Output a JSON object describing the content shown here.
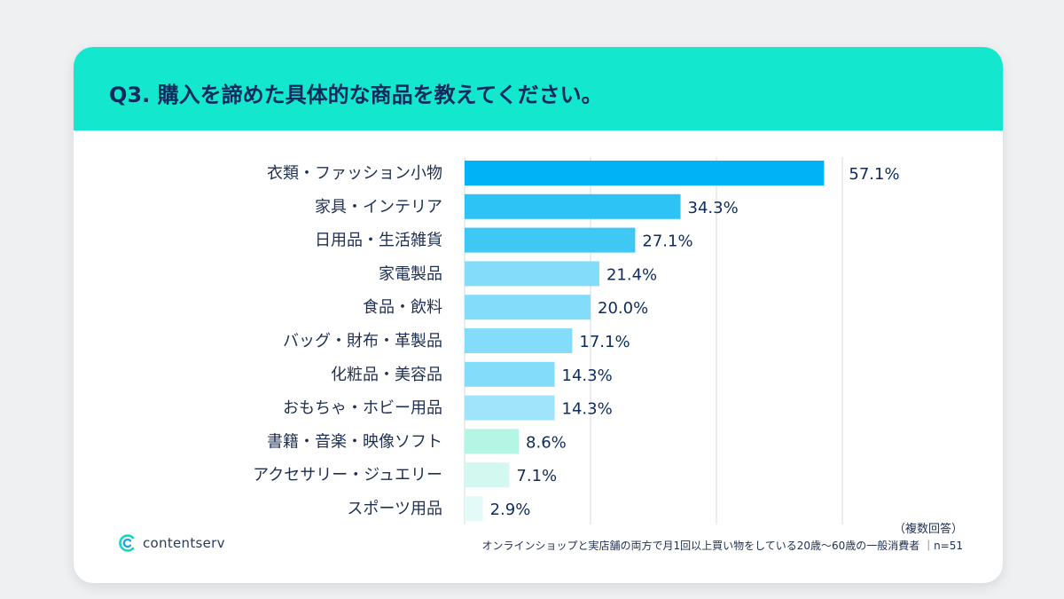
{
  "title": "Q3. 購入を諦めた具体的な商品を教えてください。",
  "brand": {
    "name": "contentserv",
    "accent": "#13e8cf"
  },
  "notes": {
    "multiple": "（複数回答）",
    "sample": "オンラインショップと実店舗の両方で月1回以上買い物をしている20歳〜60歳の一般消費者 ｜n=51"
  },
  "chart_data": {
    "type": "bar",
    "orientation": "horizontal",
    "title": "Q3. 購入を諦めた具体的な商品を教えてください。",
    "xlim": [
      0,
      60
    ],
    "grid": true,
    "categories": [
      "衣類・ファッション小物",
      "家具・インテリア",
      "日用品・生活雑貨",
      "家電製品",
      "食品・飲料",
      "バッグ・財布・革製品",
      "化粧品・美容品",
      "おもちゃ・ホビー用品",
      "書籍・音楽・映像ソフト",
      "アクセサリー・ジュエリー",
      "スポーツ用品"
    ],
    "values": [
      57.1,
      34.3,
      27.1,
      21.4,
      20.0,
      17.1,
      14.3,
      14.3,
      8.6,
      7.1,
      2.9
    ],
    "value_labels": [
      "57.1%",
      "34.3%",
      "27.1%",
      "21.4%",
      "20.0%",
      "17.1%",
      "14.3%",
      "14.3%",
      "8.6%",
      "7.1%",
      "2.9%"
    ],
    "colors": [
      "#00b3f7",
      "#2ec3f5",
      "#40c8f4",
      "#82dcfa",
      "#82dcfa",
      "#82dcfa",
      "#82dcfa",
      "#9fe4fb",
      "#b5f5e4",
      "#d2f8ef",
      "#e2fbf6"
    ]
  }
}
